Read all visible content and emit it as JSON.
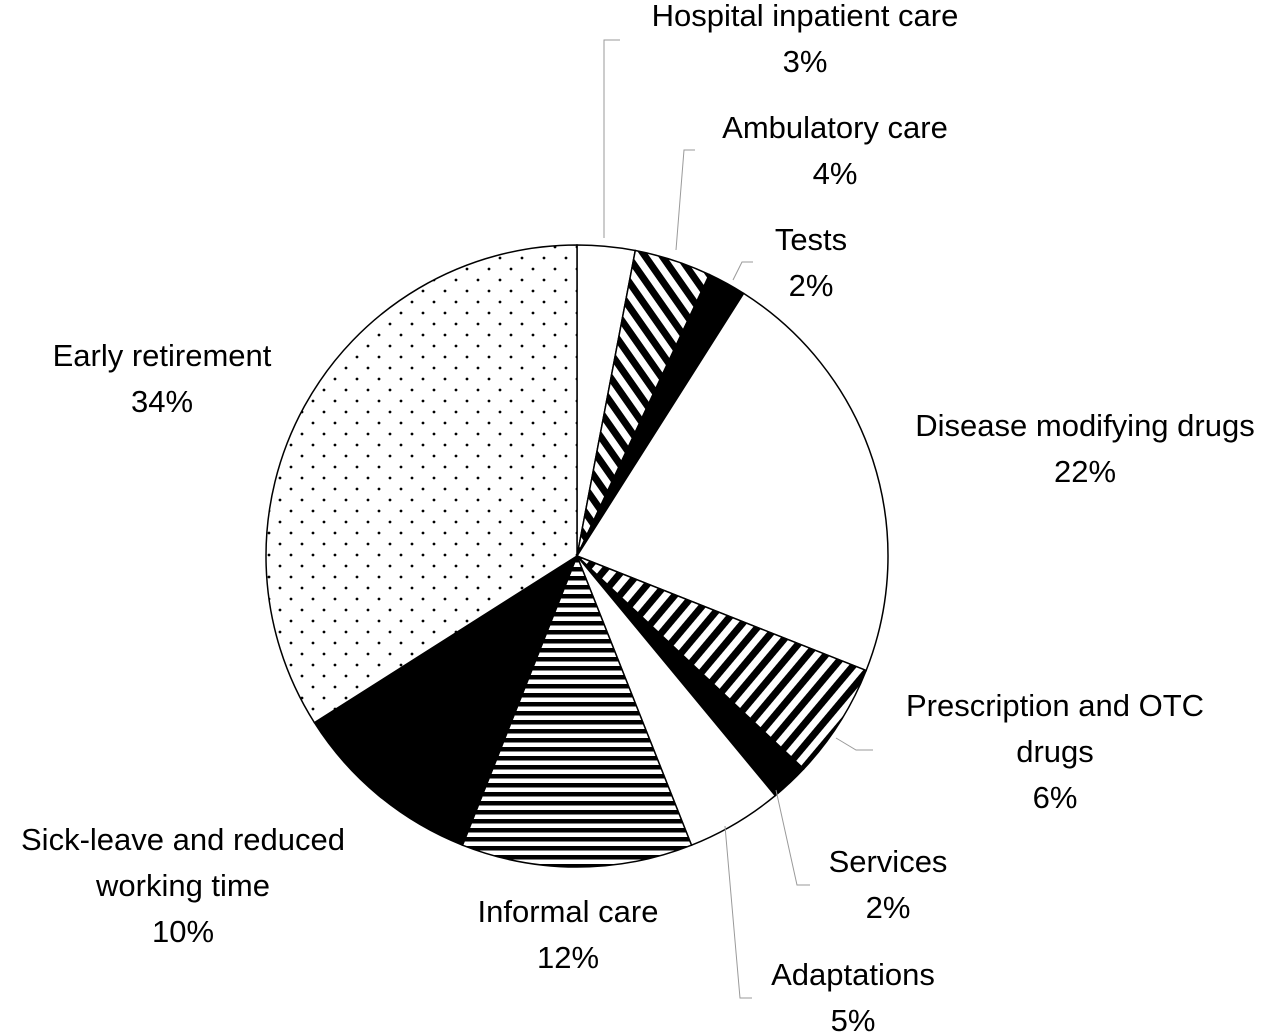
{
  "chart_data": {
    "type": "pie",
    "title": "",
    "slices": [
      {
        "name": "Hospital inpatient care",
        "value": 3,
        "label": "3%",
        "pattern": "white"
      },
      {
        "name": "Ambulatory care",
        "value": 4,
        "label": "4%",
        "pattern": "diagonal-stripes"
      },
      {
        "name": "Tests",
        "value": 2,
        "label": "2%",
        "pattern": "black"
      },
      {
        "name": "Disease modifying drugs",
        "value": 22,
        "label": "22%",
        "pattern": "white"
      },
      {
        "name": "Prescription and OTC drugs",
        "value": 6,
        "label": "6%",
        "pattern": "diagonal-stripes-reverse"
      },
      {
        "name": "Services",
        "value": 2,
        "label": "2%",
        "pattern": "black"
      },
      {
        "name": "Adaptations",
        "value": 5,
        "label": "5%",
        "pattern": "white"
      },
      {
        "name": "Informal care",
        "value": 12,
        "label": "12%",
        "pattern": "horizontal-stripes"
      },
      {
        "name": "Sick-leave and reduced working time",
        "value": 10,
        "label": "10%",
        "pattern": "black"
      },
      {
        "name": "Early retirement",
        "value": 34,
        "label": "34%",
        "pattern": "dots"
      }
    ],
    "start_angle": "12 o'clock",
    "direction": "clockwise",
    "legend": "none"
  },
  "colors": {
    "ink": "#000000",
    "paper": "#ffffff",
    "leader": "#9a9a9a"
  }
}
